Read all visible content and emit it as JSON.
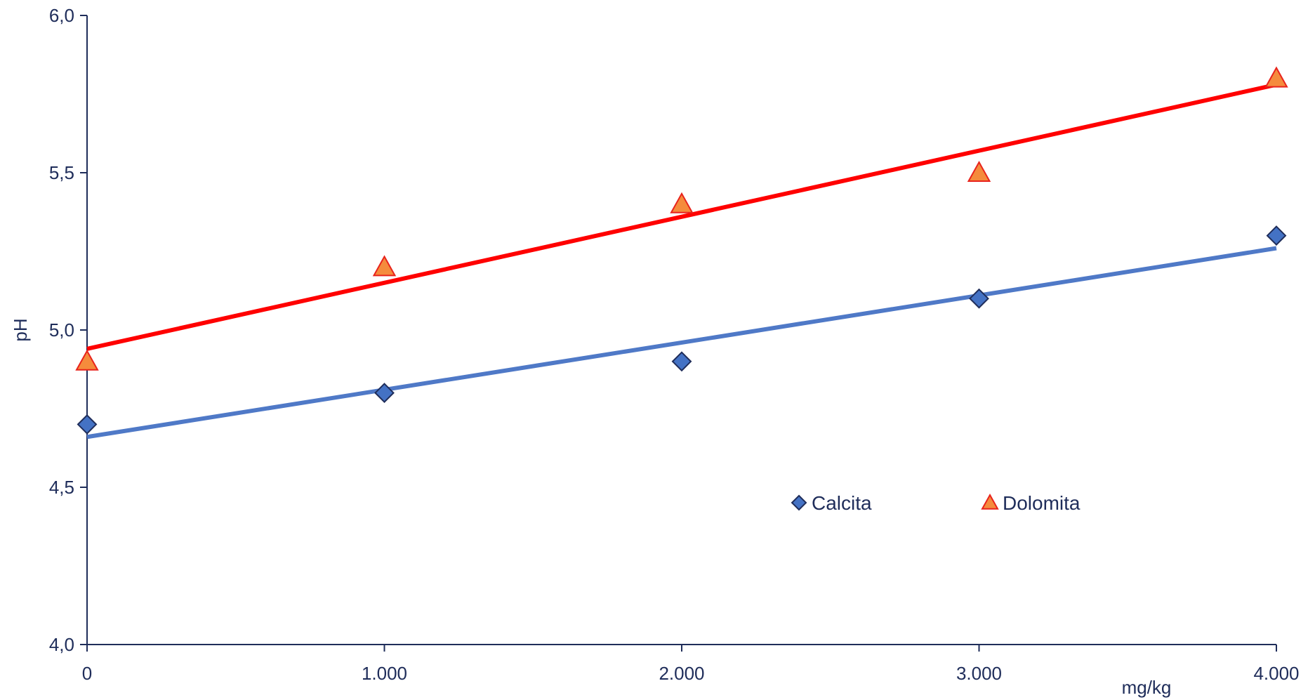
{
  "chart_data": {
    "type": "scatter",
    "title": "",
    "xlabel": "mg/kg",
    "ylabel": "pH",
    "xlim": [
      0,
      4000
    ],
    "ylim": [
      4.0,
      6.0
    ],
    "x_ticks": [
      0,
      1000,
      2000,
      3000,
      4000
    ],
    "x_tick_labels": [
      "0",
      "1.000",
      "2.000",
      "3.000",
      "4.000"
    ],
    "y_ticks": [
      4.0,
      4.5,
      5.0,
      5.5,
      6.0
    ],
    "y_tick_labels": [
      "4,0",
      "4,5",
      "5,0",
      "5,5",
      "6,0"
    ],
    "grid": false,
    "legend_position": "center-right",
    "series": [
      {
        "name": "Calcita",
        "marker": "diamond",
        "marker_color": "#4472c4",
        "marker_edge": "#1f2d5a",
        "trend_color": "#4f79c7",
        "x": [
          0,
          1000,
          2000,
          3000,
          4000
        ],
        "y": [
          4.7,
          4.8,
          4.9,
          5.1,
          5.3
        ],
        "trendline": {
          "x": [
            0,
            4000
          ],
          "y": [
            4.66,
            5.26
          ]
        }
      },
      {
        "name": "Dolomita",
        "marker": "triangle",
        "marker_color": "#f58b3c",
        "marker_edge": "#e8231c",
        "trend_color": "#ff0000",
        "x": [
          0,
          1000,
          2000,
          3000,
          4000
        ],
        "y": [
          4.9,
          5.2,
          5.4,
          5.5,
          5.8
        ],
        "trendline": {
          "x": [
            0,
            4000
          ],
          "y": [
            4.94,
            5.78
          ]
        }
      }
    ]
  }
}
